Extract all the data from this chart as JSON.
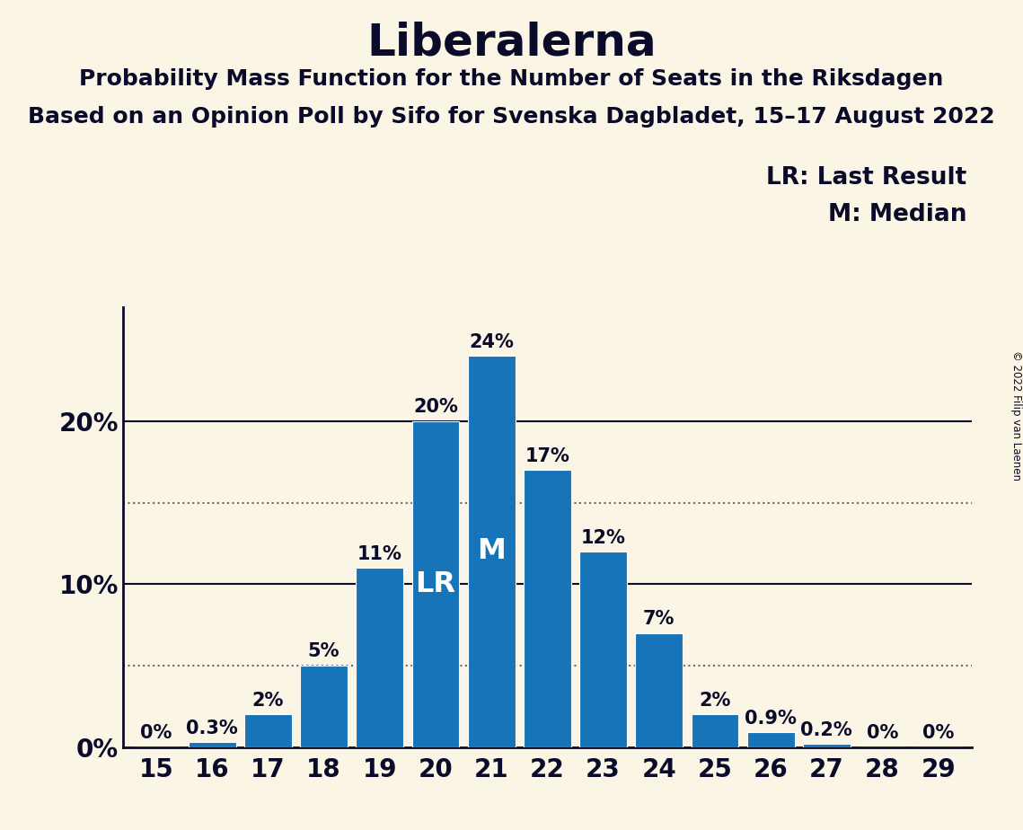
{
  "title": "Liberalerna",
  "subtitle1": "Probability Mass Function for the Number of Seats in the Riksdagen",
  "subtitle2": "Based on an Opinion Poll by Sifo for Svenska Dagbladet, 15–17 August 2022",
  "copyright": "© 2022 Filip van Laenen",
  "seats": [
    15,
    16,
    17,
    18,
    19,
    20,
    21,
    22,
    23,
    24,
    25,
    26,
    27,
    28,
    29
  ],
  "probabilities": [
    0.0,
    0.3,
    2.0,
    5.0,
    11.0,
    20.0,
    24.0,
    17.0,
    12.0,
    7.0,
    2.0,
    0.9,
    0.2,
    0.0,
    0.0
  ],
  "bar_color": "#1874b8",
  "background_color": "#faf5e4",
  "text_color": "#0a0a2a",
  "lr_seat": 20,
  "median_seat": 21,
  "legend_lr": "LR: Last Result",
  "legend_m": "M: Median",
  "yticks": [
    0,
    10,
    20
  ],
  "dotted_lines": [
    5,
    15
  ],
  "ylim_max": 27,
  "bar_width": 0.85,
  "bar_label_fontsize": 15,
  "inner_label_fontsize": 23,
  "title_fontsize": 36,
  "subtitle_fontsize": 18,
  "tick_fontsize": 20,
  "legend_fontsize": 19
}
